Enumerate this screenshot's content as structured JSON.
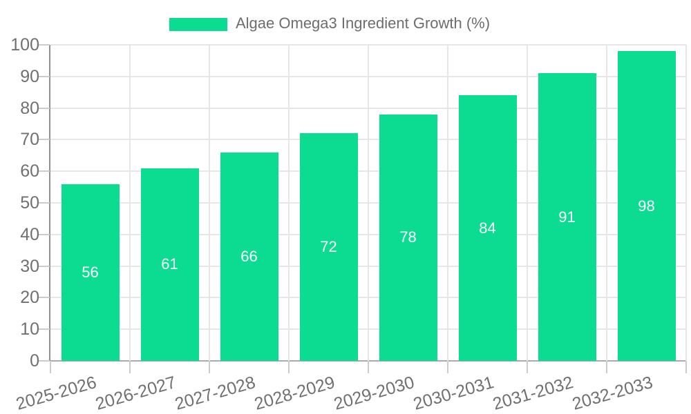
{
  "legend": {
    "label": "Algae Omega3 Ingredient Growth (%)"
  },
  "chart_data": {
    "type": "bar",
    "title": "Algae Omega3 Ingredient Growth (%)",
    "series_name": "Algae Omega3 Ingredient Growth (%)",
    "categories": [
      "2025-2026",
      "2026-2027",
      "2027-2028",
      "2028-2029",
      "2029-2030",
      "2030-2031",
      "2031-2032",
      "2032-2033"
    ],
    "values": [
      56,
      61,
      66,
      72,
      78,
      84,
      91,
      98
    ],
    "xlabel": "",
    "ylabel": "",
    "ylim": [
      0,
      100
    ],
    "yticks": [
      0,
      10,
      20,
      30,
      40,
      50,
      60,
      70,
      80,
      90,
      100
    ],
    "grid": true,
    "legend_position": "top-center",
    "bar_color": "#0bdc92",
    "value_label_color": "#ffffff",
    "axis_label_color": "#707070",
    "gridline_color": "#e6e6e6"
  }
}
